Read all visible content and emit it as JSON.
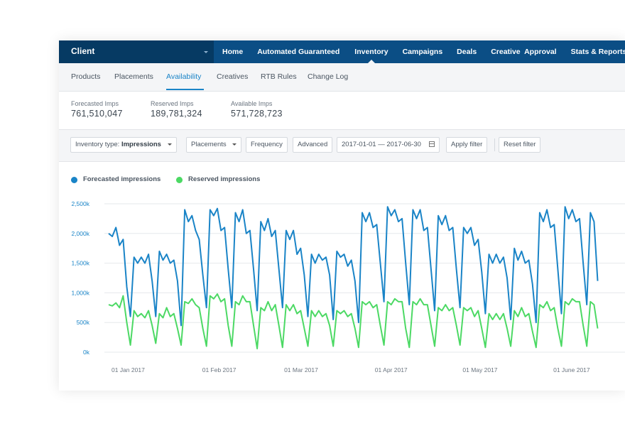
{
  "client": {
    "name": "Client"
  },
  "nav": {
    "items": [
      "Home",
      "Automated Guaranteed",
      "Inventory",
      "Campaigns",
      "Deals",
      "Creative  Approval",
      "Stats & Reports"
    ],
    "active": "Inventory"
  },
  "subnav": {
    "items": [
      "Products",
      "Placements",
      "Availability",
      "Creatives",
      "RTB Rules",
      "Change Log"
    ],
    "active": "Availability"
  },
  "stats": [
    {
      "label": "Forecasted Imps",
      "value": "761,510,047"
    },
    {
      "label": "Reserved Imps",
      "value": "189,781,324"
    },
    {
      "label": "Available Imps",
      "value": "571,728,723"
    }
  ],
  "filters": {
    "inventory_type_prefix": "Inventory type:",
    "inventory_type_value": "Impressions",
    "placements": "Placements",
    "frequency": "Frequency",
    "advanced": "Advanced",
    "date_range": "2017-01-01 — 2017-06-30",
    "apply": "Apply filter",
    "reset": "Reset filter"
  },
  "colors": {
    "accent": "#1a84c7",
    "forecasted": "#1a84c7",
    "reserved": "#4cd964",
    "topbar": "#0b4e85",
    "client_bg": "#063a63"
  },
  "chart_data": {
    "type": "line",
    "x_tick_labels": [
      "01 Jan 2017",
      "01 Feb 2017",
      "01 Mar 2017",
      "01 Apr 2017",
      "01 May 2017",
      "01 June 2017"
    ],
    "y_tick_labels": [
      "0k",
      "500k",
      "1,000k",
      "1,500k",
      "2,000k",
      "2,500k"
    ],
    "ylim": [
      0,
      2500000
    ],
    "grid": true,
    "legend_position": "top-left",
    "week_pattern_note": "daily values, weekly cycle",
    "series": [
      {
        "name": "Forecasted impressions",
        "color": "#1a84c7",
        "values": [
          2000000,
          1950000,
          2100000,
          1800000,
          1900000,
          1100000,
          600000,
          1600000,
          1500000,
          1600000,
          1500000,
          1650000,
          1200000,
          600000,
          1700000,
          1550000,
          1650000,
          1500000,
          1550000,
          1200000,
          450000,
          2400000,
          2200000,
          2300000,
          2050000,
          1900000,
          1300000,
          750000,
          2400000,
          2300000,
          2420000,
          2050000,
          2100000,
          1400000,
          750000,
          2350000,
          2200000,
          2400000,
          2000000,
          2050000,
          1400000,
          700000,
          2200000,
          2050000,
          2250000,
          1950000,
          2050000,
          1400000,
          750000,
          2050000,
          1900000,
          2050000,
          1650000,
          1750000,
          1300000,
          600000,
          1650000,
          1500000,
          1650000,
          1550000,
          1600000,
          1300000,
          550000,
          1700000,
          1600000,
          1650000,
          1450000,
          1550000,
          1200000,
          500000,
          2350000,
          2200000,
          2350000,
          2100000,
          2150000,
          1500000,
          850000,
          2450000,
          2300000,
          2400000,
          2200000,
          2250000,
          1500000,
          800000,
          2400000,
          2250000,
          2400000,
          2050000,
          2100000,
          1400000,
          700000,
          2300000,
          2150000,
          2300000,
          2050000,
          2100000,
          1400000,
          750000,
          2100000,
          2000000,
          2100000,
          1800000,
          1900000,
          1350000,
          650000,
          1650000,
          1500000,
          1650000,
          1500000,
          1600000,
          1250000,
          550000,
          1750000,
          1550000,
          1700000,
          1500000,
          1550000,
          1150000,
          500000,
          2350000,
          2200000,
          2400000,
          2100000,
          2150000,
          1400000,
          650000,
          2450000,
          2250000,
          2400000,
          2200000,
          2250000,
          1500000,
          800000,
          2350000,
          2200000,
          1200000
        ]
      },
      {
        "name": "Reserved impressions",
        "color": "#4cd964",
        "values": [
          800000,
          780000,
          830000,
          750000,
          950000,
          500000,
          120000,
          700000,
          600000,
          650000,
          580000,
          700000,
          450000,
          150000,
          650000,
          580000,
          750000,
          600000,
          650000,
          400000,
          120000,
          850000,
          820000,
          900000,
          800000,
          750000,
          400000,
          100000,
          950000,
          900000,
          980000,
          850000,
          900000,
          450000,
          100000,
          850000,
          800000,
          950000,
          850000,
          850000,
          450000,
          60000,
          750000,
          700000,
          850000,
          700000,
          800000,
          450000,
          80000,
          800000,
          700000,
          800000,
          650000,
          700000,
          400000,
          100000,
          700000,
          600000,
          700000,
          600000,
          650000,
          450000,
          100000,
          700000,
          650000,
          700000,
          600000,
          650000,
          400000,
          80000,
          850000,
          800000,
          850000,
          750000,
          800000,
          450000,
          120000,
          850000,
          800000,
          900000,
          850000,
          850000,
          400000,
          80000,
          850000,
          800000,
          900000,
          800000,
          800000,
          450000,
          100000,
          750000,
          700000,
          800000,
          700000,
          750000,
          450000,
          120000,
          750000,
          700000,
          750000,
          600000,
          700000,
          400000,
          80000,
          650000,
          550000,
          650000,
          550000,
          650000,
          400000,
          100000,
          700000,
          600000,
          750000,
          600000,
          650000,
          350000,
          80000,
          800000,
          750000,
          850000,
          700000,
          750000,
          400000,
          100000,
          850000,
          800000,
          900000,
          850000,
          850000,
          450000,
          100000,
          850000,
          800000,
          400000
        ]
      }
    ]
  }
}
